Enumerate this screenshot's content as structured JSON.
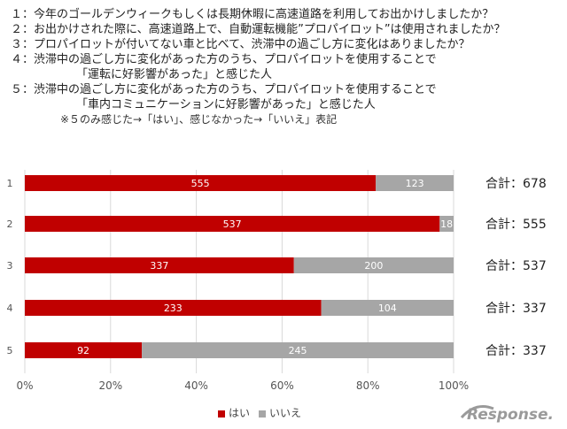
{
  "questions": [
    {
      "text": "１：今年のゴールデンウィークもしくは長期休暇に高速道路を利用してお出かけしましたか？"
    },
    {
      "text": "２：お出かけされた際に、高速道路上で、自動運転機能”プロパイロット”は使用されましたか？"
    },
    {
      "text": "３：プロパイロットが付いてない車と比べて、渋滞中の過ごし方に変化はありましたか？"
    },
    {
      "text": "４：渋滞中の過ごし方に変化があった方のうち、プロパイロットを使用することで"
    },
    {
      "text": "「運転に好影響があった」と感じた人"
    },
    {
      "text": "５：渋滞中の過ごし方に変化があった方のうち、プロパイロットを使用することで"
    },
    {
      "text": "「車内コミュニケーションに好影響があった」と感じた人"
    }
  ],
  "note": "※５のみ感じた→「はい」、感じなかった→「いいえ」表記",
  "chart_data": {
    "type": "bar",
    "orientation": "horizontal",
    "stacked": "percent",
    "categories": [
      "1",
      "2",
      "3",
      "4",
      "5"
    ],
    "series": [
      {
        "name": "はい",
        "color": "#c00000",
        "values": [
          555,
          537,
          337,
          233,
          92
        ]
      },
      {
        "name": "いいえ",
        "color": "#a6a6a6",
        "values": [
          123,
          18,
          200,
          104,
          245
        ]
      }
    ],
    "x_ticks": [
      "0%",
      "20%",
      "40%",
      "60%",
      "80%",
      "100%"
    ],
    "xlim": [
      0,
      100
    ],
    "grid": true,
    "legend": "bottom",
    "totals": [
      "合計：678",
      "合計：555",
      "合計：537",
      "合計：337",
      "合計：337"
    ]
  },
  "logo_text": "Response."
}
